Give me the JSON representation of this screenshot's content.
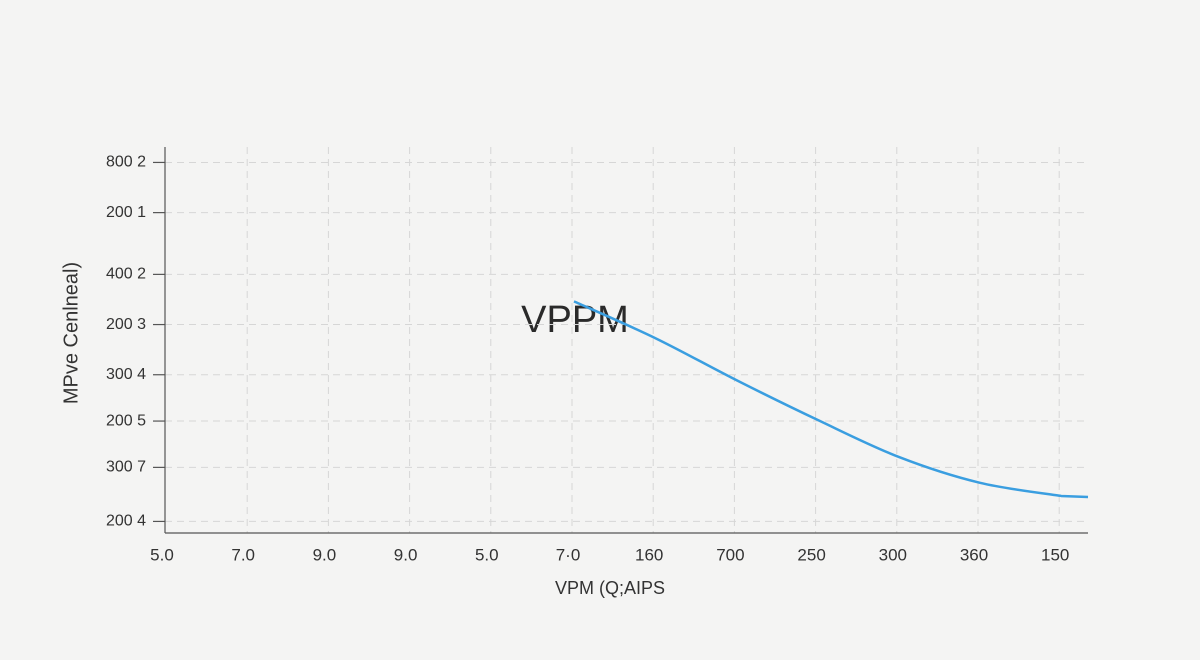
{
  "chart_data": {
    "type": "line",
    "annotation": "VPPM",
    "x_label": "VPM (Q;AIPS",
    "y_label": "MPve Cenlneal)",
    "categories": [
      "5.0",
      "7.0",
      "9.0",
      "9.0",
      "5.0",
      "7·0",
      "160",
      "700",
      "250",
      "300",
      "360",
      "150"
    ],
    "values": [
      null,
      null,
      null,
      null,
      null,
      60,
      50.5,
      39.6,
      29.3,
      19.7,
      13,
      9.6
    ],
    "color": "#3a9ee0",
    "ylim": [
      0,
      100
    ],
    "yticks": [
      {
        "value": 96,
        "label": "800 2"
      },
      {
        "value": 83,
        "label": "200 1"
      },
      {
        "value": 67,
        "label": "400 2"
      },
      {
        "value": 54,
        "label": "200 3"
      },
      {
        "value": 41,
        "label": "300 4"
      },
      {
        "value": 29,
        "label": "200 5"
      },
      {
        "value": 17,
        "label": "300 7"
      },
      {
        "value": 3,
        "label": "200 4"
      }
    ],
    "grid": true
  }
}
